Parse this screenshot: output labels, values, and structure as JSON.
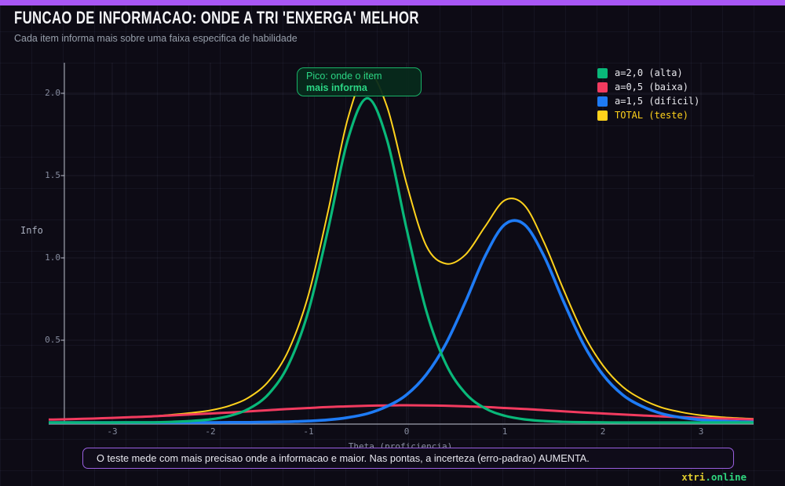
{
  "page": {
    "background": "#0d0b15",
    "accent_bar_color": "#a857f5",
    "watermark": {
      "part1": "xtri",
      "part2": ".online",
      "part1_color": "#dfcb2d",
      "part2_color": "#2fd47e"
    }
  },
  "header": {
    "title": "FUNCAO DE INFORMACAO: ONDE A TRI 'ENXERGA' MELHOR",
    "subtitle": "Cada item informa mais sobre uma faixa especifica de habilidade"
  },
  "annotations": {
    "peak_note_line1": "Pico: onde o item",
    "peak_note_line2": "mais informa",
    "peak_note_color": "#2bd584",
    "bottom_note": "O teste mede com mais precisao onde a informacao e maior. Nas pontas, a incerteza (erro-padrao) AUMENTA.",
    "bottom_note_border_color": "#9a5fe0"
  },
  "colors": {
    "green": "#09b879",
    "red": "#f23b5f",
    "blue": "#1e7bf5",
    "yellow": "#ffd21c",
    "purple": "#a857f5",
    "axis": "#b9bdc9",
    "tick_label": "#878da0"
  },
  "chart_data": {
    "type": "line",
    "title": "FUNCAO DE INFORMACAO: ONDE A TRI 'ENXERGA' MELHOR",
    "xlabel": "Theta (proficiencia)",
    "ylabel": "Info",
    "xlim": [
      -3.65,
      3.55
    ],
    "ylim": [
      0,
      2.2
    ],
    "grid": true,
    "legend_position": "top-right",
    "x_tick_labels": [
      "-3",
      "-2",
      "-1",
      "0",
      "1",
      "2",
      "3"
    ],
    "x_tick_values": [
      -3,
      -2,
      -1,
      0,
      1,
      2,
      3
    ],
    "y_tick_labels": [
      "0.5",
      "1.0",
      "1.5",
      "2.0"
    ],
    "y_tick_values": [
      0.5,
      1.0,
      1.5,
      2.0
    ],
    "x": [
      -3.6,
      -3.4,
      -3.2,
      -3.0,
      -2.8,
      -2.6,
      -2.4,
      -2.2,
      -2.0,
      -1.8,
      -1.6,
      -1.4,
      -1.2,
      -1.0,
      -0.8,
      -0.6,
      -0.4,
      -0.2,
      0.0,
      0.2,
      0.4,
      0.6,
      0.8,
      1.0,
      1.2,
      1.4,
      1.6,
      1.8,
      2.0,
      2.2,
      2.4,
      2.6,
      2.8,
      3.0,
      3.2,
      3.4,
      3.6
    ],
    "series": [
      {
        "name": "a=2,0 (alta)",
        "color": "#09b879",
        "label_color": "#e9e9ee",
        "peak": {
          "theta": -0.4,
          "info": 1.97
        },
        "values": [
          0,
          0,
          0,
          0,
          0.001,
          0.001,
          0.004,
          0.009,
          0.019,
          0.041,
          0.086,
          0.177,
          0.356,
          0.679,
          1.175,
          1.717,
          1.97,
          1.717,
          1.175,
          0.679,
          0.356,
          0.177,
          0.086,
          0.041,
          0.019,
          0.009,
          0.004,
          0.002,
          0.001,
          0,
          0,
          0,
          0,
          0,
          0,
          0,
          0
        ]
      },
      {
        "name": "a=0,5 (baixa)",
        "color": "#f23b5f",
        "label_color": "#e9e9ee",
        "peak": {
          "theta": 0.0,
          "info": 0.105
        },
        "values": [
          0.018,
          0.021,
          0.024,
          0.028,
          0.033,
          0.037,
          0.043,
          0.049,
          0.055,
          0.061,
          0.068,
          0.075,
          0.082,
          0.088,
          0.094,
          0.098,
          0.102,
          0.104,
          0.105,
          0.104,
          0.102,
          0.098,
          0.094,
          0.088,
          0.082,
          0.075,
          0.068,
          0.061,
          0.055,
          0.049,
          0.043,
          0.037,
          0.033,
          0.028,
          0.024,
          0.021,
          0.018
        ]
      },
      {
        "name": "a=1,5 (dificil)",
        "color": "#1e7bf5",
        "label_color": "#e9e9ee",
        "peak": {
          "theta": 1.1,
          "info": 1.23
        },
        "values": [
          0,
          0,
          0,
          0,
          0,
          0,
          0,
          0,
          0,
          0.001,
          0.001,
          0.003,
          0.005,
          0.009,
          0.016,
          0.03,
          0.054,
          0.098,
          0.169,
          0.291,
          0.478,
          0.734,
          1.011,
          1.203,
          1.203,
          1.011,
          0.734,
          0.478,
          0.291,
          0.169,
          0.098,
          0.054,
          0.03,
          0.016,
          0.009,
          0.005,
          0.003
        ]
      },
      {
        "name": "TOTAL (teste)",
        "color": "#ffd21c",
        "label_color": "#ffd21c",
        "peak": {
          "theta": -0.4,
          "info": 2.13
        },
        "values": [
          0.018,
          0.021,
          0.024,
          0.028,
          0.034,
          0.038,
          0.047,
          0.058,
          0.074,
          0.103,
          0.155,
          0.255,
          0.443,
          0.776,
          1.285,
          1.845,
          2.126,
          1.919,
          1.449,
          1.074,
          0.965,
          1.02,
          1.191,
          1.35,
          1.32,
          1.095,
          0.806,
          0.541,
          0.347,
          0.218,
          0.141,
          0.091,
          0.063,
          0.044,
          0.033,
          0.026,
          0.021
        ]
      }
    ]
  }
}
